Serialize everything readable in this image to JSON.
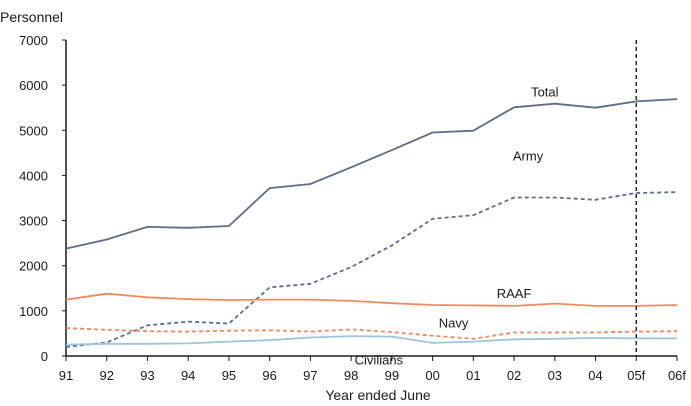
{
  "chart_data": {
    "type": "line",
    "title": "",
    "ylabel": "Personnel",
    "xlabel": "Year ended June",
    "ylim": [
      0,
      7000
    ],
    "yticks": [
      0,
      1000,
      2000,
      3000,
      4000,
      5000,
      6000,
      7000
    ],
    "grid": false,
    "legend": "inline labels",
    "forecast_marker": "05f",
    "categories": [
      "91",
      "92",
      "93",
      "94",
      "95",
      "96",
      "97",
      "98",
      "99",
      "00",
      "01",
      "02",
      "03",
      "04",
      "05f",
      "06f"
    ],
    "series": [
      {
        "name": "Total",
        "style": "solid",
        "color": "#5b6e87",
        "values": [
          2380,
          2580,
          2860,
          2840,
          2880,
          3720,
          3810,
          4180,
          4560,
          4950,
          4990,
          5510,
          5590,
          5500,
          5640,
          5690
        ]
      },
      {
        "name": "Army",
        "style": "dashed",
        "color": "#5b6e87",
        "values": [
          200,
          300,
          680,
          760,
          720,
          1520,
          1600,
          1970,
          2450,
          3040,
          3120,
          3510,
          3510,
          3460,
          3610,
          3630
        ]
      },
      {
        "name": "RAAF",
        "style": "solid",
        "color": "#f08a5d",
        "values": [
          1250,
          1380,
          1300,
          1260,
          1240,
          1250,
          1250,
          1220,
          1170,
          1130,
          1120,
          1110,
          1160,
          1110,
          1110,
          1130
        ]
      },
      {
        "name": "Navy",
        "style": "dashed",
        "color": "#f08a5d",
        "values": [
          620,
          580,
          550,
          540,
          560,
          570,
          540,
          590,
          530,
          450,
          380,
          520,
          520,
          520,
          540,
          550
        ]
      },
      {
        "name": "Civilians",
        "style": "solid",
        "color": "#9fc3dd",
        "values": [
          250,
          270,
          270,
          280,
          320,
          350,
          410,
          440,
          430,
          290,
          320,
          370,
          380,
          400,
          390,
          390
        ]
      }
    ]
  }
}
